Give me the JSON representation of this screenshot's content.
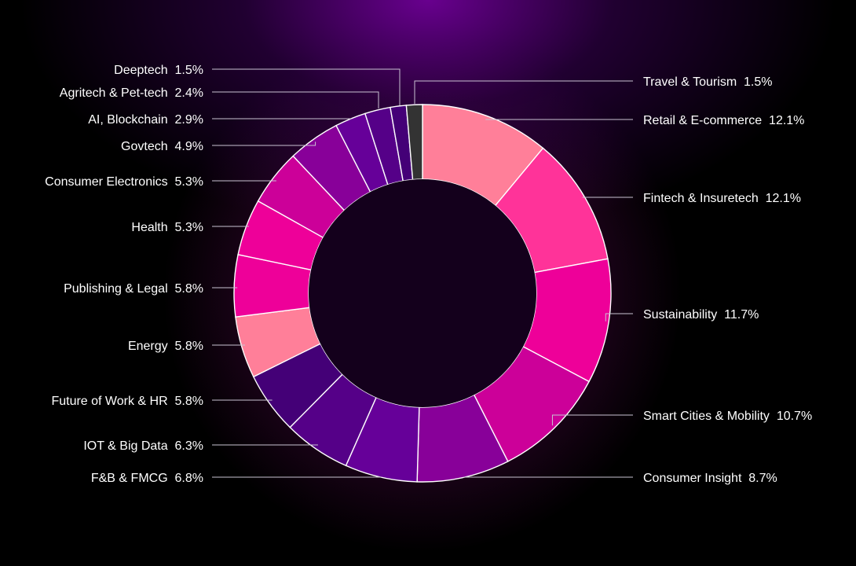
{
  "chart_data": {
    "type": "pie",
    "donut": true,
    "unit": "%",
    "slices": [
      {
        "label": "Retail & E-commerce",
        "value": 12.1,
        "color": "#ff7f99"
      },
      {
        "label": "Fintech & Insuretech",
        "value": 12.1,
        "color": "#ff3399"
      },
      {
        "label": "Sustainability",
        "value": 11.7,
        "color": "#ee0099"
      },
      {
        "label": "Smart Cities & Mobility",
        "value": 10.7,
        "color": "#cc0099"
      },
      {
        "label": "Consumer Insight",
        "value": 8.7,
        "color": "#880099"
      },
      {
        "label": "F&B & FMCG",
        "value": 6.8,
        "color": "#660099"
      },
      {
        "label": "IOT & Big Data",
        "value": 6.3,
        "color": "#550088"
      },
      {
        "label": "Future of Work & HR",
        "value": 5.8,
        "color": "#440077"
      },
      {
        "label": "Energy",
        "value": 5.8,
        "color": "#ff7f99"
      },
      {
        "label": "Publishing & Legal",
        "value": 5.8,
        "color": "#ee0099"
      },
      {
        "label": "Health",
        "value": 5.3,
        "color": "#ee0099"
      },
      {
        "label": "Consumer Electronics",
        "value": 5.3,
        "color": "#cc0099"
      },
      {
        "label": "Govtech",
        "value": 4.9,
        "color": "#880099"
      },
      {
        "label": "AI, Blockchain",
        "value": 2.9,
        "color": "#660099"
      },
      {
        "label": "Agritech & Pet-tech",
        "value": 2.4,
        "color": "#550088"
      },
      {
        "label": "Deeptech",
        "value": 1.5,
        "color": "#440077"
      },
      {
        "label": "Travel & Tourism",
        "value": 1.5,
        "color": "#333333"
      }
    ],
    "legend": "none"
  }
}
